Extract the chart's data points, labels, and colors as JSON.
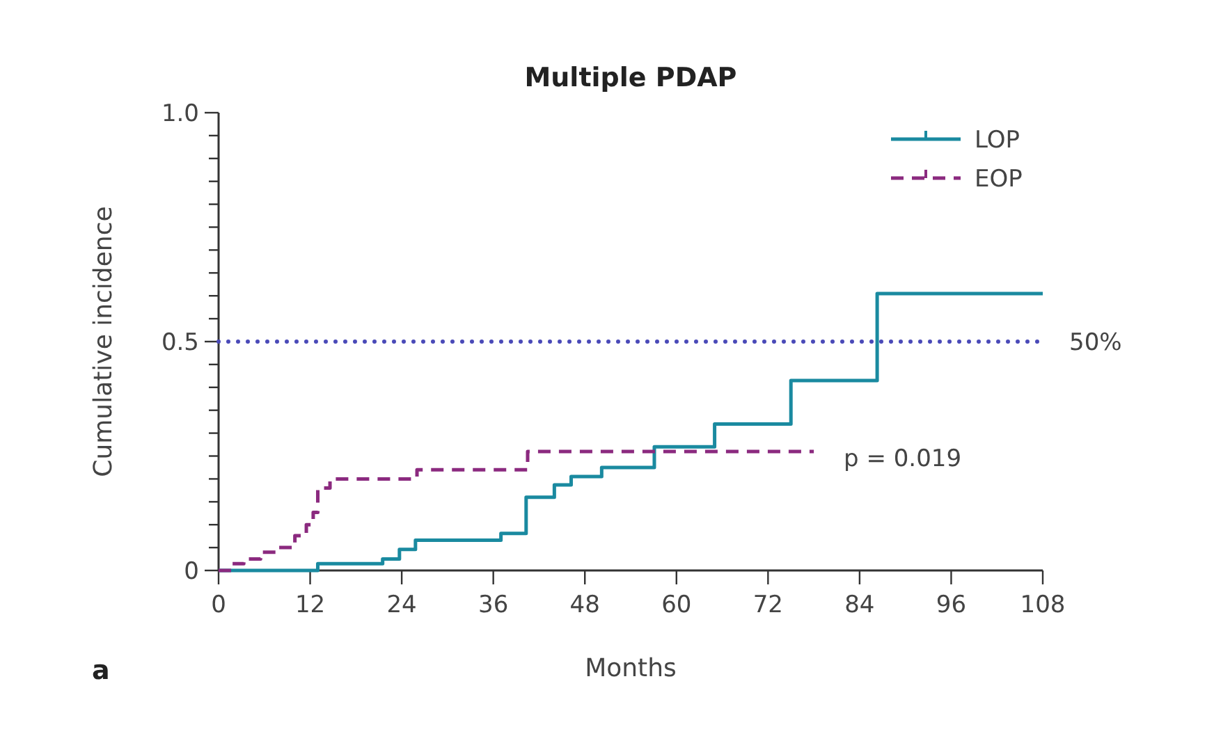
{
  "chart_data": {
    "type": "step",
    "title": "Multiple PDAP",
    "xlabel": "Months",
    "ylabel": "Cumulative incidence",
    "xlim": [
      0,
      108
    ],
    "xticks": [
      0,
      12,
      24,
      36,
      48,
      60,
      72,
      84,
      96,
      108
    ],
    "ylim": [
      0,
      1
    ],
    "yticks": [
      {
        "value": 0,
        "label": "0"
      },
      {
        "value": 0.05,
        "label": null
      },
      {
        "value": 0.1,
        "label": null
      },
      {
        "value": 0.15,
        "label": null
      },
      {
        "value": 0.2,
        "label": null
      },
      {
        "value": 0.25,
        "label": null
      },
      {
        "value": 0.3,
        "label": null
      },
      {
        "value": 0.35,
        "label": null
      },
      {
        "value": 0.4,
        "label": null
      },
      {
        "value": 0.45,
        "label": null
      },
      {
        "value": 0.5,
        "label": "0.5"
      },
      {
        "value": 0.55,
        "label": null
      },
      {
        "value": 0.6,
        "label": null
      },
      {
        "value": 0.65,
        "label": null
      },
      {
        "value": 0.7,
        "label": null
      },
      {
        "value": 0.75,
        "label": null
      },
      {
        "value": 0.8,
        "label": null
      },
      {
        "value": 0.85,
        "label": null
      },
      {
        "value": 0.9,
        "label": null
      },
      {
        "value": 0.95,
        "label": null
      },
      {
        "value": 1,
        "label": "1.0"
      }
    ],
    "series": [
      {
        "name": "LOP",
        "color": "#1a8aa0",
        "line_style": "solid",
        "x": [
          0,
          13,
          21.5,
          23.7,
          25.8,
          37,
          40.3,
          44,
          46.2,
          50.2,
          57.1,
          65,
          75,
          86.3,
          108
        ],
        "values": [
          0,
          0.015,
          0.025,
          0.046,
          0.066,
          0.081,
          0.16,
          0.187,
          0.205,
          0.225,
          0.27,
          0.32,
          0.415,
          0.605,
          0.605
        ]
      },
      {
        "name": "EOP",
        "color": "#8b2a7f",
        "line_style": "dashed",
        "x": [
          0,
          1.8,
          3.3,
          5.5,
          7.5,
          10,
          11.5,
          12.4,
          13,
          14.6,
          26,
          40.5,
          78
        ],
        "values": [
          0,
          0.015,
          0.025,
          0.04,
          0.05,
          0.076,
          0.1,
          0.127,
          0.18,
          0.2,
          0.22,
          0.26,
          0.26
        ]
      }
    ],
    "ref_lines": [
      {
        "axis": "y",
        "value": 0.5,
        "label": "50%",
        "color": "#4a4ab8",
        "line_style": "dotted"
      }
    ],
    "annotations": [
      "p = 0.019",
      "a"
    ],
    "legend": "top right",
    "grid": false
  }
}
